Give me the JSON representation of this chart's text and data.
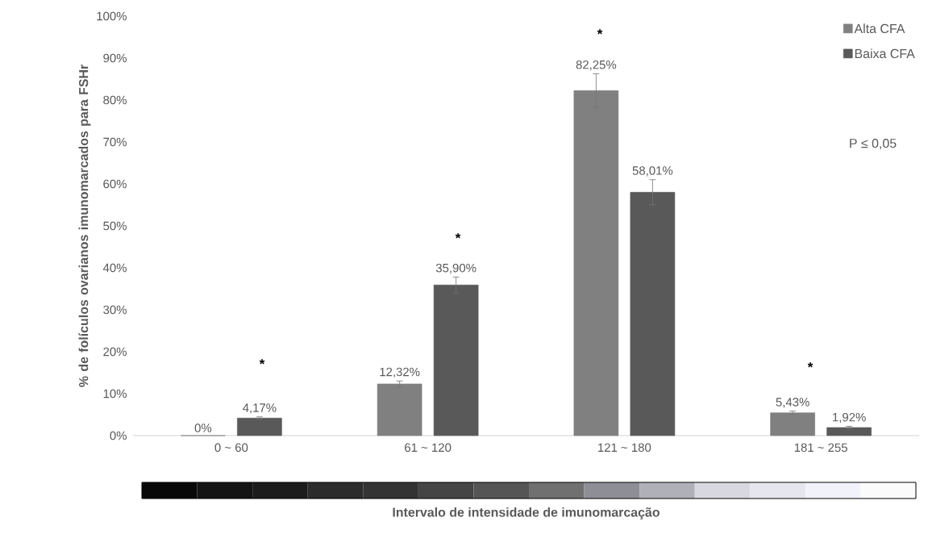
{
  "chart_data": {
    "type": "bar",
    "ylabel": "% de folículos ovarianos imunomarcados para FSHr",
    "xlabel": "Intervalo de intensidade de imunomarcação",
    "categories": [
      "0 ~ 60",
      "61 ~ 120",
      "121 ~ 180",
      "181 ~ 255"
    ],
    "series": [
      {
        "name": "Alta CFA",
        "color": "#808080",
        "values": [
          0,
          12.32,
          82.25,
          5.43
        ],
        "errors": [
          null,
          0.7,
          4,
          0.4
        ],
        "value_labels": [
          "0%",
          "12,32%",
          "82,25%",
          "5,43%"
        ]
      },
      {
        "name": "Baixa CFA",
        "color": "#595959",
        "values": [
          4.17,
          35.9,
          58.01,
          1.92
        ],
        "errors": [
          0.3,
          1.9,
          3,
          0.3
        ],
        "value_labels": [
          "4,17%",
          "35,90%",
          "58,01%",
          "1,92%"
        ]
      }
    ],
    "ylim": [
      0,
      100
    ],
    "yticks": [
      {
        "value": 0,
        "label": "0%"
      },
      {
        "value": 10,
        "label": "10%"
      },
      {
        "value": 20,
        "label": "20%"
      },
      {
        "value": 30,
        "label": "30%"
      },
      {
        "value": 40,
        "label": "40%"
      },
      {
        "value": 50,
        "label": "50%"
      },
      {
        "value": 60,
        "label": "60%"
      },
      {
        "value": 70,
        "label": "70%"
      },
      {
        "value": 80,
        "label": "80%"
      },
      {
        "value": 90,
        "label": "90%"
      },
      {
        "value": 100,
        "label": "100%"
      }
    ],
    "annotations": [
      "*",
      "*",
      "*",
      "*",
      "P ≤ 0,05"
    ],
    "legend": "top right",
    "grid": false
  }
}
